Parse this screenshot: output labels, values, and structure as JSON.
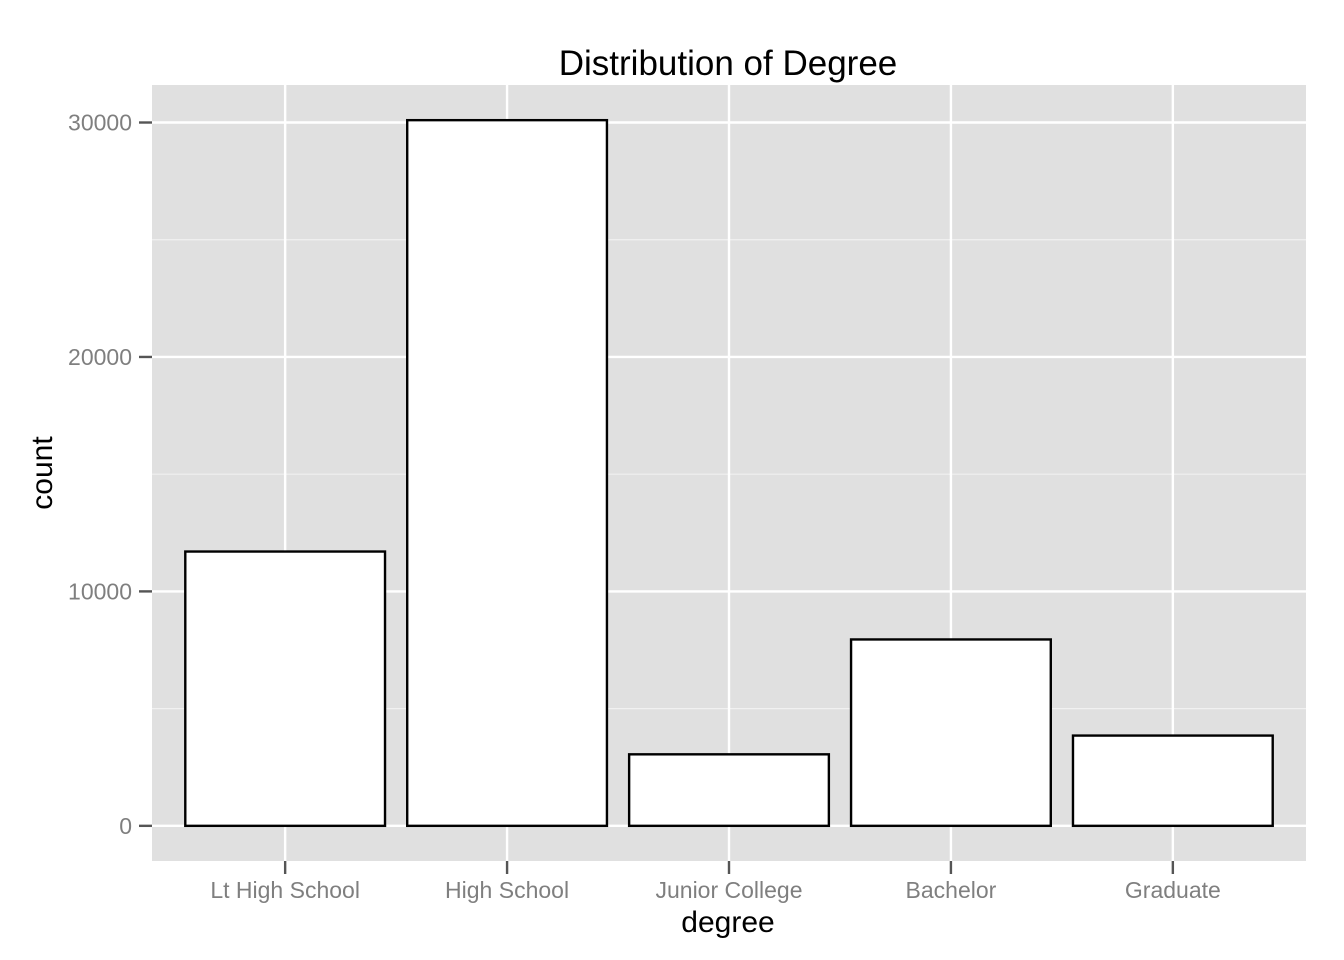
{
  "chart_data": {
    "type": "bar",
    "title": "Distribution of Degree",
    "xlabel": "degree",
    "ylabel": "count",
    "categories": [
      "Lt High School",
      "High School",
      "Junior College",
      "Bachelor",
      "Graduate"
    ],
    "values": [
      11700,
      30100,
      3050,
      7950,
      3850
    ],
    "ylim": [
      -1500,
      31600
    ],
    "yticks": [
      0,
      10000,
      20000,
      30000
    ],
    "ytick_labels": [
      "0",
      "10000",
      "20000",
      "30000"
    ],
    "grid": true,
    "legend": "none",
    "colors": {
      "panel_background": "#e0e0e0",
      "grid": "#ffffff",
      "bar_fill": "#ffffff",
      "bar_stroke": "#000000",
      "tick_label": "#7f7f7f"
    }
  }
}
